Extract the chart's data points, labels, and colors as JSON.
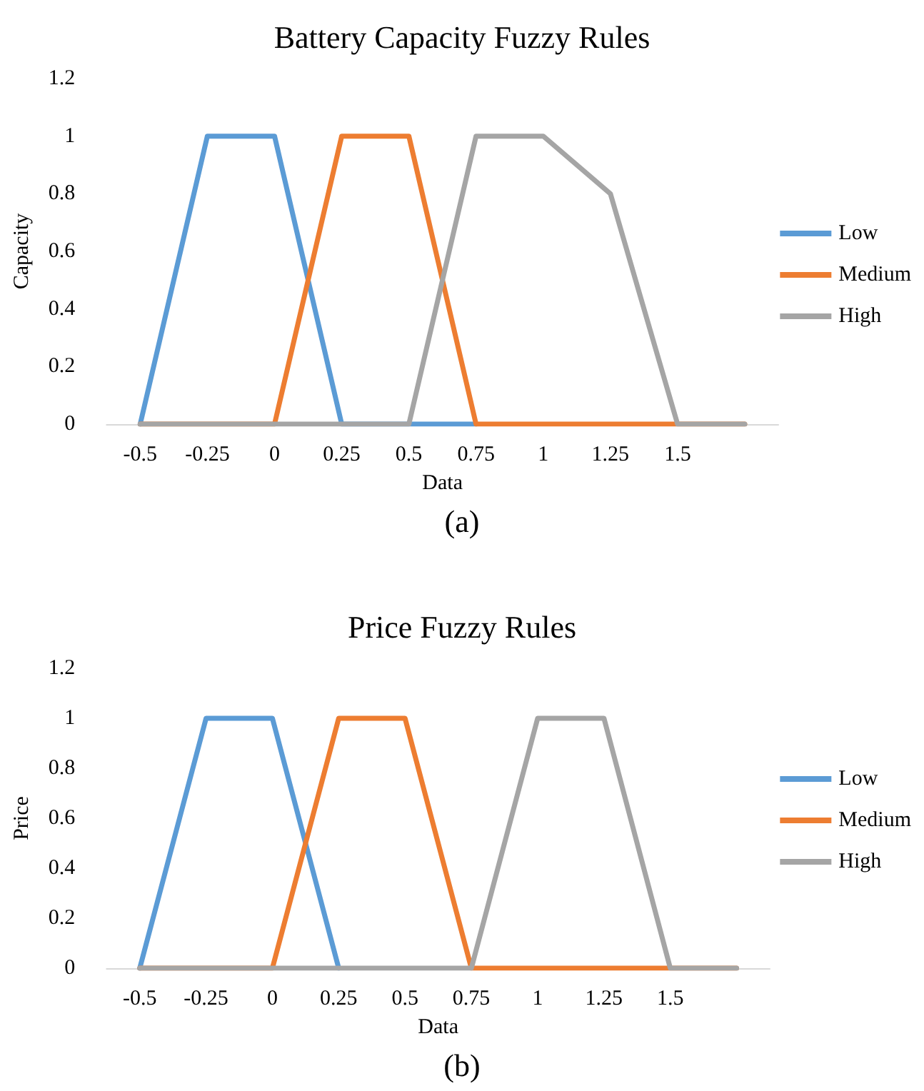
{
  "chart_data": [
    {
      "type": "line",
      "title": "Battery Capacity Fuzzy Rules",
      "xlabel": "Data",
      "ylabel": "Capacity",
      "annotations": [
        "(a)"
      ],
      "categories": [
        "-0.5",
        "-0.25",
        "0",
        "0.25",
        "0.5",
        "0.75",
        "1",
        "1.25",
        "1.5",
        null
      ],
      "series": [
        {
          "name": "Low",
          "color": "#5b9bd5",
          "values": [
            0,
            1,
            1,
            0,
            0,
            0,
            null,
            null,
            null,
            null
          ]
        },
        {
          "name": "Medium",
          "color": "#ed7d31",
          "values": [
            0,
            0,
            0,
            1,
            1,
            0,
            0,
            0,
            0,
            0
          ]
        },
        {
          "name": "High",
          "color": "#a5a5a5",
          "values": [
            0,
            0,
            0,
            0,
            0,
            1,
            1,
            0.8,
            0,
            0
          ]
        }
      ],
      "ylim": [
        0,
        1.2
      ],
      "yticks": [
        0,
        0.2,
        0.4,
        0.6,
        0.8,
        1,
        1.2
      ],
      "grid": false,
      "legend": "right",
      "marker": "none",
      "line_style": "solid"
    },
    {
      "type": "line",
      "title": "Price Fuzzy Rules",
      "xlabel": "Data",
      "ylabel": "Price",
      "annotations": [
        "(b)"
      ],
      "categories": [
        "-0.5",
        "-0.25",
        "0",
        "0.25",
        "0.5",
        "0.75",
        "1",
        "1.25",
        "1.5",
        null
      ],
      "series": [
        {
          "name": "Low",
          "color": "#5b9bd5",
          "values": [
            0,
            1,
            1,
            0,
            null,
            null,
            null,
            null,
            null,
            null
          ]
        },
        {
          "name": "Medium",
          "color": "#ed7d31",
          "values": [
            0,
            0,
            0,
            1,
            1,
            0,
            0,
            0,
            0,
            0
          ]
        },
        {
          "name": "High",
          "color": "#a5a5a5",
          "values": [
            0,
            0,
            0,
            0,
            0,
            0,
            1,
            1,
            0,
            0
          ]
        }
      ],
      "ylim": [
        0,
        1.2
      ],
      "yticks": [
        0,
        0.2,
        0.4,
        0.6,
        0.8,
        1,
        1.2
      ],
      "grid": false,
      "legend": "right",
      "marker": "none",
      "line_style": "solid"
    }
  ]
}
